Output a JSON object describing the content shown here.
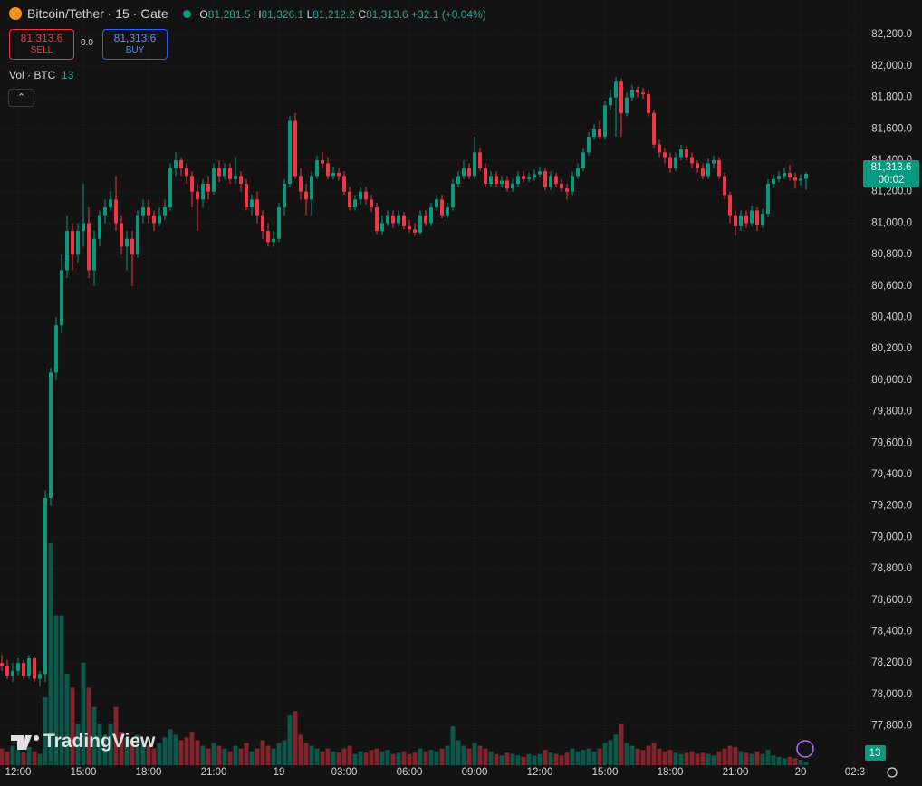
{
  "header": {
    "symbol": "Bitcoin/Tether · 15 · Gate",
    "ohlc": [
      {
        "key": "O",
        "value": "81,281.5"
      },
      {
        "key": "H",
        "value": "81,326.1"
      },
      {
        "key": "L",
        "value": "81,212.2"
      },
      {
        "key": "C",
        "value": "81,313.6"
      }
    ],
    "change": "+32.1 (+0.04%)",
    "sell_price": "81,313.6",
    "sell": "SELL",
    "spread": "0.0",
    "buy_price": "81,313.6",
    "buy": "BUY",
    "volume_title": "Vol · BTC",
    "volume_value": "13",
    "logo": "TradingView"
  },
  "chart_data": {
    "type": "candlestick",
    "up_color": "#089981",
    "down_color": "#f23645",
    "grid": true,
    "ylim": [
      77550,
      82420
    ],
    "yticks": [
      {
        "value": 77800,
        "label": "77,800.0"
      },
      {
        "value": 78000,
        "label": "78,000.0"
      },
      {
        "value": 78200,
        "label": "78,200.0"
      },
      {
        "value": 78400,
        "label": "78,400.0"
      },
      {
        "value": 78600,
        "label": "78,600.0"
      },
      {
        "value": 78800,
        "label": "78,800.0"
      },
      {
        "value": 79000,
        "label": "79,000.0"
      },
      {
        "value": 79200,
        "label": "79,200.0"
      },
      {
        "value": 79400,
        "label": "79,400.0"
      },
      {
        "value": 79600,
        "label": "79,600.0"
      },
      {
        "value": 79800,
        "label": "79,800.0"
      },
      {
        "value": 80000,
        "label": "80,000.0"
      },
      {
        "value": 80200,
        "label": "80,200.0"
      },
      {
        "value": 80400,
        "label": "80,400.0"
      },
      {
        "value": 80600,
        "label": "80,600.0"
      },
      {
        "value": 80800,
        "label": "80,800.0"
      },
      {
        "value": 81000,
        "label": "81,000.0"
      },
      {
        "value": 81200,
        "label": "81,200.0"
      },
      {
        "value": 81400,
        "label": "81,400.0"
      },
      {
        "value": 81600,
        "label": "81,600.0"
      },
      {
        "value": 81800,
        "label": "81,800.0"
      },
      {
        "value": 82000,
        "label": "82,000.0"
      },
      {
        "value": 82200,
        "label": "82,200.0"
      }
    ],
    "xticks": [
      {
        "value": 3,
        "label": "12:00"
      },
      {
        "value": 15,
        "label": "15:00"
      },
      {
        "value": 27,
        "label": "18:00"
      },
      {
        "value": 39,
        "label": "21:00"
      },
      {
        "value": 51,
        "label": "19"
      },
      {
        "value": 63,
        "label": "03:00"
      },
      {
        "value": 75,
        "label": "06:00"
      },
      {
        "value": 87,
        "label": "09:00"
      },
      {
        "value": 99,
        "label": "12:00"
      },
      {
        "value": 111,
        "label": "15:00"
      },
      {
        "value": 123,
        "label": "18:00"
      },
      {
        "value": 135,
        "label": "21:00"
      },
      {
        "value": 147,
        "label": "20"
      },
      {
        "value": 157,
        "label": "02:3"
      }
    ],
    "last_price_label": "81,313.6",
    "countdown": "00:02",
    "volume_label": "13",
    "open": [
      78200,
      78180,
      78120,
      78150,
      78200,
      78120,
      78230,
      78100,
      78130,
      79250,
      80050,
      80350,
      80700,
      80950,
      80800,
      80950,
      81000,
      80700,
      80900,
      81050,
      81100,
      81150,
      81000,
      80850,
      80900,
      80800,
      81050,
      81100,
      81050,
      81000,
      81050,
      81100,
      81350,
      81400,
      81350,
      81300,
      81200,
      81150,
      81250,
      81200,
      81350,
      81300,
      81350,
      81280,
      81300,
      81250,
      81100,
      81150,
      81050,
      80950,
      80880,
      80900,
      81100,
      81250,
      81650,
      81300,
      81200,
      81150,
      81300,
      81400,
      81380,
      81300,
      81320,
      81300,
      81200,
      81100,
      81150,
      81200,
      81150,
      81100,
      80950,
      81000,
      81050,
      81000,
      81050,
      80980,
      80960,
      80940,
      81050,
      81000,
      81100,
      81150,
      81050,
      81100,
      81250,
      81300,
      81350,
      81300,
      81450,
      81350,
      81250,
      81300,
      81250,
      81270,
      81220,
      81250,
      81300,
      81280,
      81290,
      81310,
      81330,
      81230,
      81300,
      81250,
      81220,
      81200,
      81300,
      81350,
      81450,
      81550,
      81600,
      81550,
      81750,
      81800,
      81900,
      81700,
      81800,
      81850,
      81830,
      81820,
      81700,
      81500,
      81450,
      81420,
      81350,
      81420,
      81470,
      81420,
      81380,
      81350,
      81300,
      81380,
      81400,
      81300,
      81180,
      81050,
      80980,
      81050,
      81000,
      81080,
      80990,
      81060,
      81250,
      81280,
      81300,
      81320,
      81290,
      81270,
      81281.5
    ],
    "high": [
      78250,
      78220,
      78200,
      78230,
      78220,
      78250,
      78240,
      78150,
      79300,
      80080,
      80400,
      80800,
      81050,
      81000,
      81000,
      81250,
      81100,
      80950,
      81080,
      81150,
      81200,
      81300,
      81050,
      80950,
      80950,
      81080,
      81150,
      81150,
      81080,
      81100,
      81150,
      81380,
      81450,
      81420,
      81380,
      81330,
      81250,
      81280,
      81300,
      81380,
      81400,
      81380,
      81380,
      81420,
      81330,
      81280,
      81180,
      81200,
      81080,
      81000,
      80950,
      81130,
      81280,
      81680,
      81700,
      81350,
      81250,
      81330,
      81430,
      81450,
      81420,
      81360,
      81350,
      81330,
      81230,
      81180,
      81230,
      81230,
      81180,
      81130,
      81050,
      81080,
      81080,
      81080,
      81070,
      81020,
      81000,
      81080,
      81080,
      81130,
      81180,
      81180,
      81130,
      81280,
      81330,
      81400,
      81380,
      81550,
      81480,
      81380,
      81330,
      81330,
      81300,
      81300,
      81280,
      81330,
      81330,
      81320,
      81340,
      81360,
      81350,
      81330,
      81320,
      81280,
      81250,
      81330,
      81380,
      81480,
      81580,
      81630,
      81650,
      81780,
      81850,
      81930,
      81920,
      81830,
      81880,
      81870,
      81860,
      81850,
      81720,
      81530,
      81480,
      81450,
      81450,
      81500,
      81490,
      81450,
      81400,
      81380,
      81410,
      81430,
      81420,
      81320,
      81200,
      81080,
      81080,
      81080,
      81110,
      81100,
      81090,
      81280,
      81310,
      81330,
      81350,
      81370,
      81320,
      81310,
      81326.1
    ],
    "low": [
      78150,
      78100,
      78080,
      78120,
      78100,
      78100,
      78080,
      78050,
      78080,
      79200,
      80000,
      80300,
      80650,
      80700,
      80750,
      80850,
      80650,
      80600,
      80850,
      81000,
      81080,
      80950,
      80800,
      80700,
      80600,
      80780,
      81000,
      81000,
      80950,
      80980,
      81020,
      81080,
      81300,
      81300,
      81250,
      81100,
      80950,
      81100,
      81150,
      81180,
      81260,
      81280,
      81250,
      81250,
      81200,
      81080,
      81050,
      81000,
      80900,
      80850,
      80850,
      80880,
      81050,
      81230,
      81280,
      81150,
      81050,
      81050,
      81280,
      81350,
      81280,
      81280,
      81270,
      81180,
      81080,
      81080,
      81120,
      81120,
      81070,
      80930,
      80930,
      80980,
      80970,
      80980,
      80960,
      80940,
      80920,
      80930,
      80980,
      80980,
      81080,
      81030,
      81030,
      81080,
      81230,
      81280,
      81280,
      81280,
      81330,
      81230,
      81230,
      81230,
      81230,
      81200,
      81200,
      81230,
      81260,
      81260,
      81270,
      81290,
      81210,
      81210,
      81230,
      81200,
      81150,
      81180,
      81280,
      81330,
      81430,
      81530,
      81530,
      81530,
      81720,
      81550,
      81550,
      81680,
      81780,
      81800,
      81790,
      81680,
      81480,
      81420,
      81380,
      81320,
      81330,
      81400,
      81400,
      81350,
      81320,
      81280,
      81280,
      81350,
      81280,
      81150,
      81000,
      80920,
      80950,
      80970,
      80980,
      80950,
      80970,
      81040,
      81230,
      81260,
      81280,
      81270,
      81220,
      81240,
      81212.2
    ],
    "close": [
      78180,
      78120,
      78150,
      78200,
      78120,
      78230,
      78100,
      78130,
      79250,
      80050,
      80350,
      80700,
      80950,
      80800,
      80950,
      81000,
      80700,
      80900,
      81050,
      81100,
      81150,
      81000,
      80850,
      80900,
      80800,
      81050,
      81100,
      81050,
      81000,
      81050,
      81100,
      81350,
      81400,
      81350,
      81300,
      81200,
      81150,
      81250,
      81200,
      81350,
      81300,
      81350,
      81280,
      81300,
      81250,
      81100,
      81150,
      81050,
      80950,
      80880,
      80900,
      81100,
      81250,
      81650,
      81300,
      81200,
      81150,
      81300,
      81400,
      81380,
      81300,
      81320,
      81300,
      81200,
      81100,
      81150,
      81200,
      81150,
      81100,
      80950,
      81000,
      81050,
      81000,
      81050,
      80980,
      80960,
      80940,
      81050,
      81000,
      81100,
      81150,
      81050,
      81100,
      81250,
      81300,
      81350,
      81300,
      81450,
      81350,
      81250,
      81300,
      81250,
      81270,
      81220,
      81250,
      81300,
      81280,
      81290,
      81310,
      81330,
      81230,
      81300,
      81250,
      81220,
      81200,
      81300,
      81350,
      81450,
      81550,
      81600,
      81550,
      81750,
      81800,
      81900,
      81700,
      81800,
      81850,
      81830,
      81820,
      81700,
      81500,
      81450,
      81420,
      81350,
      81420,
      81470,
      81420,
      81380,
      81350,
      81300,
      81380,
      81400,
      81300,
      81180,
      81050,
      80980,
      81050,
      81000,
      81080,
      80990,
      81060,
      81250,
      81280,
      81300,
      81320,
      81290,
      81270,
      81281.5,
      81313.6
    ],
    "volume": [
      60,
      50,
      70,
      55,
      45,
      65,
      50,
      40,
      245,
      800,
      540,
      540,
      330,
      280,
      150,
      370,
      280,
      210,
      150,
      110,
      150,
      210,
      120,
      100,
      80,
      110,
      90,
      70,
      60,
      80,
      100,
      130,
      110,
      90,
      100,
      120,
      90,
      70,
      60,
      80,
      70,
      60,
      50,
      70,
      60,
      80,
      50,
      60,
      90,
      70,
      60,
      80,
      90,
      180,
      195,
      110,
      80,
      70,
      60,
      50,
      60,
      50,
      45,
      60,
      70,
      40,
      50,
      45,
      55,
      60,
      50,
      55,
      40,
      45,
      50,
      40,
      45,
      60,
      50,
      55,
      50,
      60,
      70,
      140,
      90,
      70,
      60,
      80,
      70,
      60,
      50,
      40,
      35,
      45,
      40,
      35,
      30,
      40,
      35,
      40,
      55,
      45,
      40,
      35,
      45,
      60,
      50,
      55,
      60,
      50,
      60,
      80,
      90,
      110,
      150,
      80,
      70,
      60,
      55,
      70,
      80,
      60,
      50,
      55,
      45,
      40,
      45,
      50,
      40,
      45,
      40,
      35,
      50,
      60,
      70,
      65,
      50,
      45,
      40,
      50,
      40,
      55,
      35,
      30,
      25,
      30,
      25,
      20,
      13
    ]
  }
}
